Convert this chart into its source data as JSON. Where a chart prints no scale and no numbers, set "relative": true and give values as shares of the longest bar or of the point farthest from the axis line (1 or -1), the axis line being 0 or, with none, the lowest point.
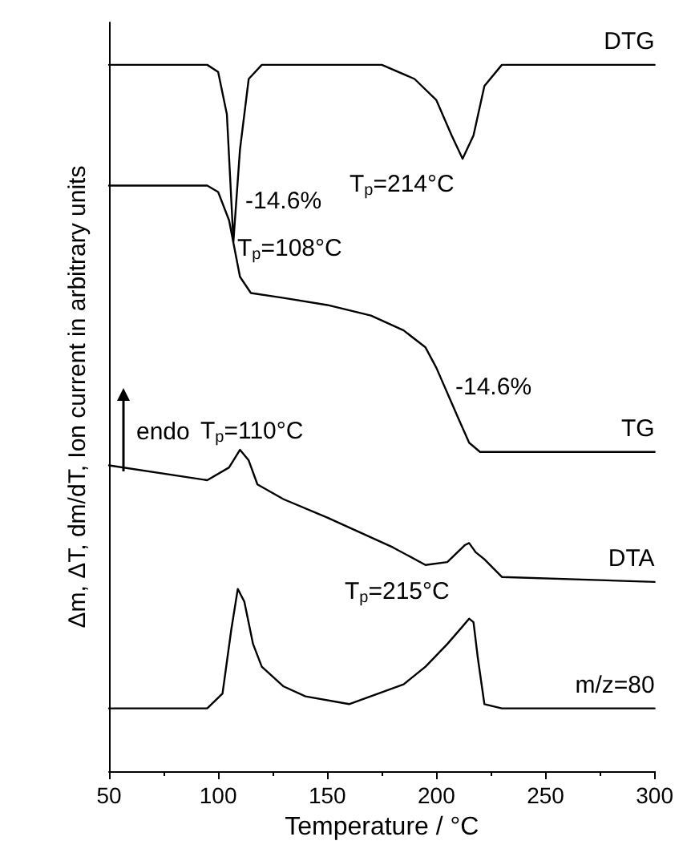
{
  "chart_data": {
    "type": "line",
    "relative": true,
    "xlabel": "Temperature / °C",
    "ylabel": "Δm, ΔT, dm/dT, Ion current in arbitrary units",
    "xlim": [
      50,
      300
    ],
    "xticks": [
      50,
      100,
      150,
      200,
      250,
      300
    ],
    "grid": false,
    "legend": false,
    "marker": "none",
    "line_style": "solid",
    "series": [
      {
        "name": "DTG",
        "color": "#000000",
        "x": [
          50,
          95,
          100,
          104,
          107,
          110,
          114,
          120,
          175,
          190,
          200,
          207,
          212,
          217,
          222,
          230,
          300
        ],
        "values": [
          1.0,
          1.0,
          0.99,
          0.93,
          0.75,
          0.88,
          0.98,
          1.0,
          1.0,
          0.98,
          0.95,
          0.9,
          0.867,
          0.9,
          0.97,
          1.0,
          1.0
        ]
      },
      {
        "name": "TG",
        "color": "#000000",
        "x": [
          50,
          95,
          100,
          105,
          110,
          115,
          130,
          150,
          170,
          185,
          195,
          200,
          210,
          215,
          220,
          300
        ],
        "values": [
          0.829,
          0.829,
          0.82,
          0.78,
          0.7,
          0.677,
          0.67,
          0.66,
          0.645,
          0.624,
          0.6,
          0.571,
          0.5,
          0.465,
          0.452,
          0.452
        ]
      },
      {
        "name": "DTA",
        "color": "#000000",
        "x": [
          50,
          95,
          105,
          110,
          114,
          118,
          130,
          150,
          180,
          195,
          205,
          213,
          215,
          218,
          222,
          230,
          300
        ],
        "values": [
          0.433,
          0.412,
          0.43,
          0.455,
          0.44,
          0.406,
          0.385,
          0.359,
          0.317,
          0.292,
          0.296,
          0.32,
          0.323,
          0.31,
          0.3,
          0.275,
          0.268
        ]
      },
      {
        "name": "m/z=80",
        "color": "#000000",
        "x": [
          50,
          95,
          102,
          106,
          109,
          112,
          116,
          120,
          130,
          140,
          160,
          185,
          195,
          205,
          212,
          215,
          217,
          219,
          222,
          230,
          300
        ],
        "values": [
          0.089,
          0.089,
          0.11,
          0.2,
          0.258,
          0.24,
          0.18,
          0.148,
          0.12,
          0.106,
          0.095,
          0.123,
          0.148,
          0.18,
          0.205,
          0.216,
          0.211,
          0.16,
          0.095,
          0.089,
          0.089
        ]
      }
    ],
    "annotations": [
      "T$_{p}$=108°C",
      "T$_{p}$=214°C",
      "-14.6%",
      "-14.6%",
      "T$_{p}$=110°C",
      "T$_{p}$=215°C",
      "endo"
    ]
  }
}
